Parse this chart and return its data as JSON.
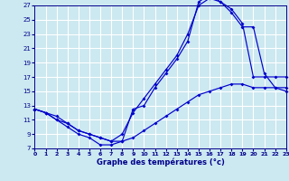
{
  "xlabel": "Graphe des températures (°c)",
  "xlim": [
    0,
    23
  ],
  "ylim": [
    7,
    27
  ],
  "xticks": [
    0,
    1,
    2,
    3,
    4,
    5,
    6,
    7,
    8,
    9,
    10,
    11,
    12,
    13,
    14,
    15,
    16,
    17,
    18,
    19,
    20,
    21,
    22,
    23
  ],
  "yticks": [
    7,
    9,
    11,
    13,
    15,
    17,
    19,
    21,
    23,
    25,
    27
  ],
  "bg_color": "#cce8f0",
  "grid_color": "#ffffff",
  "line_color": "#0000cc",
  "line1_x": [
    0,
    1,
    2,
    3,
    4,
    5,
    6,
    7,
    8,
    9,
    10,
    11,
    12,
    13,
    14,
    15,
    16,
    17,
    18,
    19,
    20,
    21,
    22,
    23
  ],
  "line1_y": [
    12.5,
    12.0,
    11.5,
    10.5,
    9.5,
    9.0,
    8.5,
    8.0,
    8.0,
    8.5,
    9.5,
    10.5,
    11.5,
    12.5,
    13.5,
    14.5,
    15.0,
    15.5,
    16.0,
    16.0,
    15.5,
    15.5,
    15.5,
    15.5
  ],
  "line2_x": [
    0,
    1,
    2,
    3,
    4,
    5,
    6,
    7,
    8,
    9,
    10,
    11,
    12,
    13,
    14,
    15,
    16,
    17,
    18,
    19,
    20,
    21,
    22,
    23
  ],
  "line2_y": [
    12.5,
    12.0,
    11.0,
    10.5,
    9.5,
    9.0,
    8.5,
    8.0,
    9.0,
    12.0,
    14.0,
    16.0,
    18.0,
    20.0,
    23.0,
    27.0,
    28.0,
    27.5,
    26.5,
    24.5,
    17.0,
    17.0,
    17.0,
    17.0
  ],
  "line3_x": [
    0,
    1,
    2,
    3,
    4,
    5,
    6,
    7,
    8,
    9,
    10,
    11,
    12,
    13,
    14,
    15,
    16,
    17,
    18,
    19,
    20,
    21,
    22,
    23
  ],
  "line3_y": [
    12.5,
    12.0,
    11.0,
    10.0,
    9.0,
    8.5,
    7.5,
    7.5,
    8.0,
    12.5,
    13.0,
    15.5,
    17.5,
    19.5,
    22.0,
    27.5,
    28.5,
    27.5,
    26.0,
    24.0,
    24.0,
    17.5,
    15.5,
    15.0
  ]
}
